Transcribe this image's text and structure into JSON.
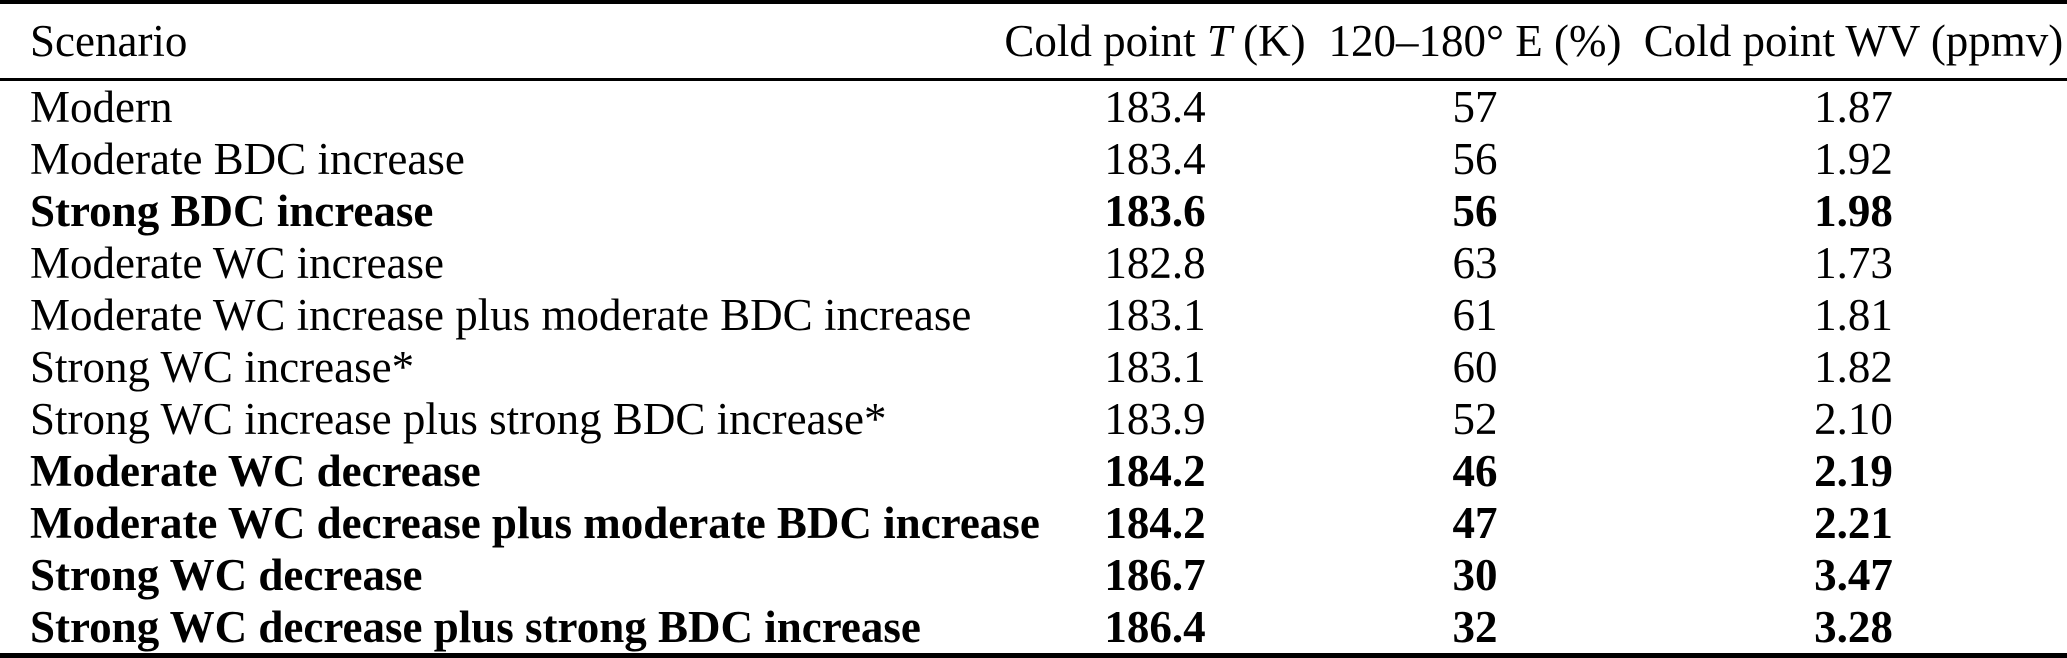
{
  "page": {
    "background_color": "#ffffff",
    "text_color": "#000000"
  },
  "table": {
    "header": {
      "scenario": "Scenario",
      "cold_point_t_pre": "Cold point ",
      "cold_point_t_var": "T",
      "cold_point_t_post": " (K)",
      "longitude_band": "120–180° E (%)",
      "cold_point_wv": "Cold point WV (ppmv)"
    },
    "rows": [
      {
        "scenario": "Modern",
        "cold_point_t": "183.4",
        "band_pct": "57",
        "wv_ppmv": "1.87",
        "bold": false
      },
      {
        "scenario": "Moderate BDC increase",
        "cold_point_t": "183.4",
        "band_pct": "56",
        "wv_ppmv": "1.92",
        "bold": false
      },
      {
        "scenario": "Strong BDC increase",
        "cold_point_t": "183.6",
        "band_pct": "56",
        "wv_ppmv": "1.98",
        "bold": true
      },
      {
        "scenario": "Moderate WC increase",
        "cold_point_t": "182.8",
        "band_pct": "63",
        "wv_ppmv": "1.73",
        "bold": false
      },
      {
        "scenario": "Moderate WC increase plus moderate BDC increase",
        "cold_point_t": "183.1",
        "band_pct": "61",
        "wv_ppmv": "1.81",
        "bold": false
      },
      {
        "scenario": "Strong WC increase*",
        "cold_point_t": "183.1",
        "band_pct": "60",
        "wv_ppmv": "1.82",
        "bold": false
      },
      {
        "scenario": "Strong WC increase plus strong BDC increase*",
        "cold_point_t": "183.9",
        "band_pct": "52",
        "wv_ppmv": "2.10",
        "bold": false
      },
      {
        "scenario": "Moderate WC decrease",
        "cold_point_t": "184.2",
        "band_pct": "46",
        "wv_ppmv": "2.19",
        "bold": true
      },
      {
        "scenario": "Moderate WC decrease plus moderate BDC increase",
        "cold_point_t": "184.2",
        "band_pct": "47",
        "wv_ppmv": "2.21",
        "bold": true
      },
      {
        "scenario": "Strong WC decrease",
        "cold_point_t": "186.7",
        "band_pct": "30",
        "wv_ppmv": "3.47",
        "bold": true
      },
      {
        "scenario": "Strong WC decrease plus strong BDC increase",
        "cold_point_t": "186.4",
        "band_pct": "32",
        "wv_ppmv": "3.28",
        "bold": true
      }
    ]
  }
}
